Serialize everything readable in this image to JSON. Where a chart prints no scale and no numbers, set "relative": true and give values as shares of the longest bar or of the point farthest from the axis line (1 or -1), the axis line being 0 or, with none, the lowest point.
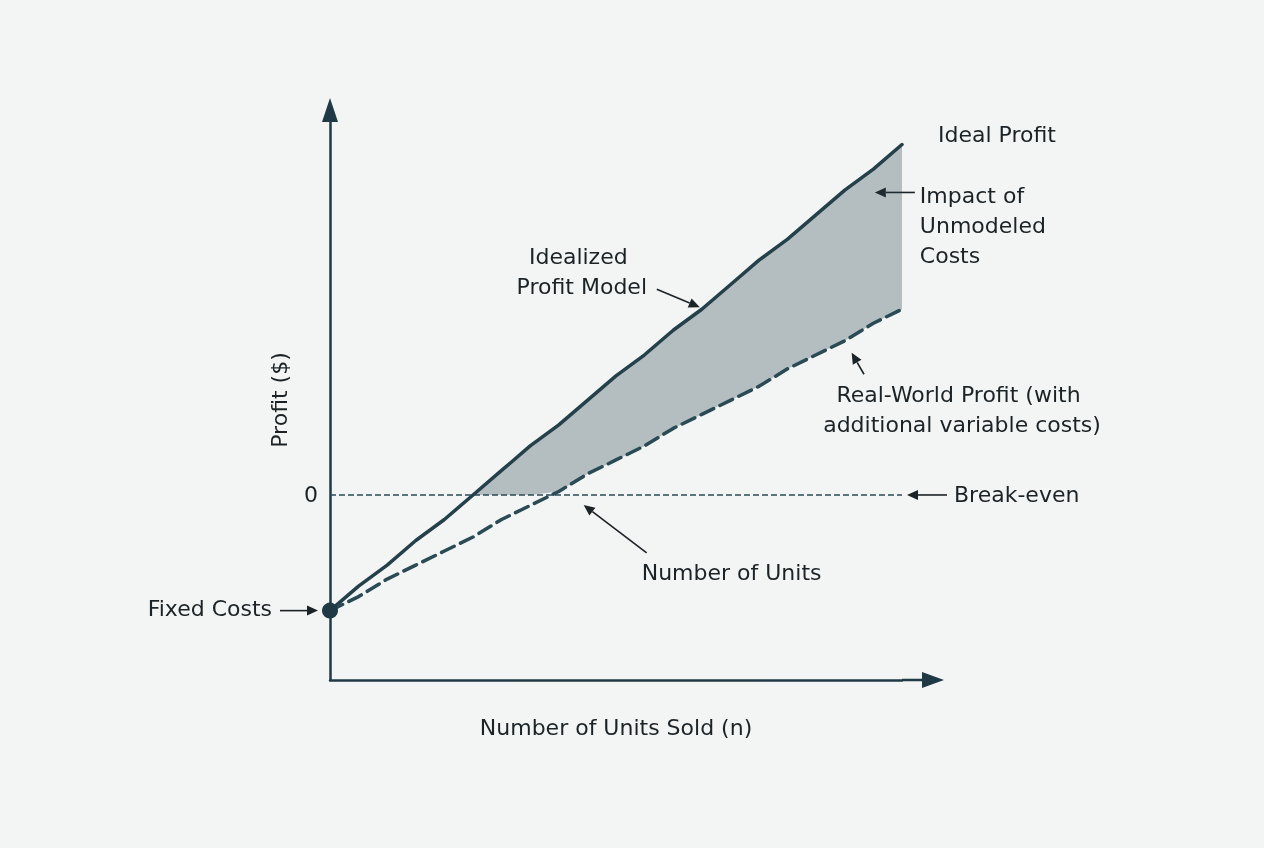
{
  "chart_data": {
    "type": "line",
    "relative": true,
    "xlabel": "Number of Units Sold (n)",
    "ylabel": "Profit ($)",
    "categories": [
      null,
      null,
      null,
      null,
      null,
      null,
      null,
      null,
      null,
      null,
      null,
      null,
      null,
      null,
      null,
      null,
      null,
      null,
      null,
      null,
      null
    ],
    "series": [
      {
        "name": "Ideal Profit",
        "color": "#24404a",
        "line_style": "solid",
        "values": [
          -0.33,
          -0.26,
          -0.2,
          -0.13,
          -0.07,
          0.0,
          0.07,
          0.14,
          0.2,
          0.27,
          0.34,
          0.4,
          0.47,
          0.53,
          0.6,
          0.67,
          0.73,
          0.8,
          0.87,
          0.93,
          1.0
        ],
        "lower": [
          null,
          null,
          null,
          null,
          null,
          0.0,
          0.0,
          0.0,
          0.01,
          0.06,
          0.1,
          0.14,
          0.19,
          0.23,
          0.27,
          0.31,
          0.36,
          0.4,
          0.44,
          0.49,
          0.53
        ],
        "upper": [
          null,
          null,
          null,
          null,
          null,
          0.0,
          0.07,
          0.14,
          0.2,
          0.27,
          0.34,
          0.4,
          0.47,
          0.53,
          0.6,
          0.67,
          0.73,
          0.8,
          0.87,
          0.93,
          1.0
        ]
      },
      {
        "name": "Real-World Profit (with additional variable costs)",
        "color": "#2a4a55",
        "line_style": "dashed",
        "values": [
          -0.33,
          -0.29,
          -0.24,
          -0.2,
          -0.16,
          -0.12,
          -0.07,
          -0.03,
          0.01,
          0.06,
          0.1,
          0.14,
          0.19,
          0.23,
          0.27,
          0.31,
          0.36,
          0.4,
          0.44,
          0.49,
          0.53
        ]
      }
    ],
    "ref_lines": [
      {
        "axis": "y",
        "value": 0,
        "label": "Break-even",
        "line_style": "dashed",
        "color": "#2a4a55"
      }
    ],
    "annotations": [
      "Idealized Profit Model",
      "Impact of Unmodeled Costs",
      {
        "text": "Number of Units",
        "y": 0
      },
      "Fixed Costs",
      "0"
    ],
    "grid": false,
    "legend": false
  }
}
